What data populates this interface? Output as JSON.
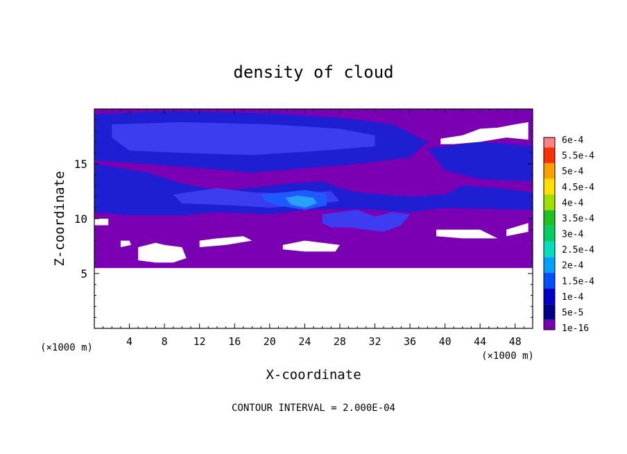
{
  "chart_data": {
    "type": "heatmap",
    "title": "density of cloud",
    "xlabel": "X-coordinate",
    "ylabel": "Z-coordinate",
    "x_unit": "(×1000 m)",
    "y_unit": "(×1000 m)",
    "footer": "CONTOUR INTERVAL = 2.000E-04",
    "xlim": [
      0,
      50
    ],
    "ylim": [
      0,
      20
    ],
    "x_ticks": [
      4,
      8,
      12,
      16,
      20,
      24,
      28,
      32,
      36,
      40,
      44,
      48
    ],
    "y_ticks": [
      5,
      10,
      15
    ],
    "colorbar": {
      "labels": [
        "1e-16",
        "5e-5",
        "1e-4",
        "1.5e-4",
        "2e-4",
        "2.5e-4",
        "3e-4",
        "3.5e-4",
        "4e-4",
        "4.5e-4",
        "5e-4",
        "5.5e-4",
        "6e-4"
      ],
      "colors": [
        "#7B00B4",
        "#00008B",
        "#0000CD",
        "#0050FF",
        "#00A0FF",
        "#00E0C0",
        "#00D060",
        "#20C020",
        "#A0E000",
        "#FFE000",
        "#FFA000",
        "#FF3000",
        "#FF8080"
      ]
    },
    "field_colors": {
      "none": "#FFFFFF",
      "trace": "#7B00B4",
      "low": "#1E1ED2",
      "mid": "#3C3CF0",
      "high": "#1E5AFF",
      "peak": "#28A0FF"
    },
    "regions": [
      {
        "level": "trace",
        "poly": [
          [
            0,
            5.5
          ],
          [
            50,
            5.5
          ],
          [
            50,
            20
          ],
          [
            0,
            20
          ]
        ]
      },
      {
        "level": "low",
        "poly": [
          [
            0,
            19.5
          ],
          [
            8,
            19.8
          ],
          [
            20,
            19.6
          ],
          [
            28,
            19.2
          ],
          [
            34,
            18.6
          ],
          [
            38,
            17.0
          ],
          [
            36,
            15.6
          ],
          [
            30,
            15.0
          ],
          [
            24,
            14.6
          ],
          [
            18,
            14.2
          ],
          [
            12,
            14.6
          ],
          [
            6,
            15.0
          ],
          [
            0,
            15.3
          ]
        ]
      },
      {
        "level": "low",
        "poly": [
          [
            0,
            15.0
          ],
          [
            6,
            14.2
          ],
          [
            10,
            13.2
          ],
          [
            14,
            12.6
          ],
          [
            18,
            12.8
          ],
          [
            22,
            13.2
          ],
          [
            26,
            13.4
          ],
          [
            28,
            12.8
          ],
          [
            30,
            12.4
          ],
          [
            36,
            12.0
          ],
          [
            40,
            12.2
          ],
          [
            42,
            13.0
          ],
          [
            46,
            12.8
          ],
          [
            50,
            12.4
          ],
          [
            50,
            10.8
          ],
          [
            44,
            10.9
          ],
          [
            40,
            11.0
          ],
          [
            36,
            10.6
          ],
          [
            30,
            10.9
          ],
          [
            24,
            10.8
          ],
          [
            20,
            10.4
          ],
          [
            14,
            10.6
          ],
          [
            10,
            10.3
          ],
          [
            4,
            10.3
          ],
          [
            0,
            10.6
          ]
        ]
      },
      {
        "level": "low",
        "poly": [
          [
            38,
            16.4
          ],
          [
            44,
            17.0
          ],
          [
            50,
            16.6
          ],
          [
            50,
            13.4
          ],
          [
            44,
            13.6
          ],
          [
            40,
            14.4
          ]
        ]
      },
      {
        "level": "mid",
        "poly": [
          [
            2,
            18.6
          ],
          [
            10,
            18.8
          ],
          [
            20,
            18.6
          ],
          [
            28,
            18.2
          ],
          [
            32,
            17.6
          ],
          [
            32,
            16.6
          ],
          [
            26,
            16.2
          ],
          [
            18,
            15.8
          ],
          [
            10,
            16.0
          ],
          [
            4,
            16.2
          ],
          [
            2,
            17.4
          ]
        ]
      },
      {
        "level": "mid",
        "poly": [
          [
            9,
            12.2
          ],
          [
            14,
            12.8
          ],
          [
            18,
            12.4
          ],
          [
            22,
            12.3
          ],
          [
            27,
            12.5
          ],
          [
            28,
            11.6
          ],
          [
            24,
            11.2
          ],
          [
            20,
            11.0
          ],
          [
            16,
            11.2
          ],
          [
            10,
            11.4
          ]
        ]
      },
      {
        "level": "mid",
        "poly": [
          [
            26,
            10.4
          ],
          [
            28,
            10.6
          ],
          [
            30,
            10.8
          ],
          [
            32,
            10.2
          ],
          [
            34,
            10.6
          ],
          [
            36,
            10.4
          ],
          [
            35,
            9.4
          ],
          [
            33,
            8.8
          ],
          [
            31,
            9.0
          ],
          [
            29,
            9.2
          ],
          [
            27,
            9.2
          ],
          [
            26,
            9.6
          ]
        ]
      },
      {
        "level": "high",
        "poly": [
          [
            19,
            12.2
          ],
          [
            21.5,
            12.4
          ],
          [
            24,
            12.6
          ],
          [
            26.5,
            12.3
          ],
          [
            26.5,
            11.2
          ],
          [
            24,
            10.8
          ],
          [
            21,
            11.2
          ],
          [
            19.5,
            11.6
          ]
        ]
      },
      {
        "level": "peak",
        "poly": [
          [
            21.8,
            11.9
          ],
          [
            23.2,
            12.1
          ],
          [
            25,
            11.9
          ],
          [
            25.4,
            11.4
          ],
          [
            24,
            11.0
          ],
          [
            22.4,
            11.3
          ]
        ]
      },
      {
        "level": "none",
        "poly": [
          [
            39.5,
            17.3
          ],
          [
            42,
            17.6
          ],
          [
            44,
            18.2
          ],
          [
            46,
            18.3
          ],
          [
            48,
            18.6
          ],
          [
            49.5,
            18.8
          ],
          [
            49.5,
            17.2
          ],
          [
            47,
            17.4
          ],
          [
            44,
            17.0
          ],
          [
            41,
            16.8
          ],
          [
            39.5,
            16.8
          ]
        ]
      },
      {
        "level": "none",
        "poly": [
          [
            39,
            9.0
          ],
          [
            44,
            9.0
          ],
          [
            45,
            8.6
          ],
          [
            46,
            8.2
          ],
          [
            42,
            8.2
          ],
          [
            39,
            8.4
          ]
        ]
      },
      {
        "level": "none",
        "poly": [
          [
            47,
            9.0
          ],
          [
            49.5,
            9.6
          ],
          [
            49.5,
            8.8
          ],
          [
            47,
            8.4
          ]
        ]
      },
      {
        "level": "none",
        "poly": [
          [
            12,
            8.0
          ],
          [
            14,
            8.2
          ],
          [
            17,
            8.4
          ],
          [
            18,
            8.0
          ],
          [
            15,
            7.6
          ],
          [
            12,
            7.4
          ]
        ]
      },
      {
        "level": "none",
        "poly": [
          [
            21.5,
            7.6
          ],
          [
            24,
            8.0
          ],
          [
            26,
            7.8
          ],
          [
            28,
            7.6
          ],
          [
            27.5,
            7.0
          ],
          [
            24,
            7.0
          ],
          [
            21.5,
            7.2
          ]
        ]
      },
      {
        "level": "none",
        "poly": [
          [
            5,
            7.4
          ],
          [
            7,
            7.8
          ],
          [
            8,
            7.6
          ],
          [
            10,
            7.4
          ],
          [
            10.5,
            6.4
          ],
          [
            9,
            6.0
          ],
          [
            7,
            6.0
          ],
          [
            5,
            6.2
          ]
        ]
      },
      {
        "level": "none",
        "poly": [
          [
            3,
            8.0
          ],
          [
            4,
            8.0
          ],
          [
            4.2,
            7.6
          ],
          [
            3,
            7.4
          ]
        ]
      },
      {
        "level": "none",
        "poly": [
          [
            0,
            10.0
          ],
          [
            1.6,
            10.0
          ],
          [
            1.6,
            9.4
          ],
          [
            0,
            9.4
          ]
        ]
      }
    ]
  }
}
